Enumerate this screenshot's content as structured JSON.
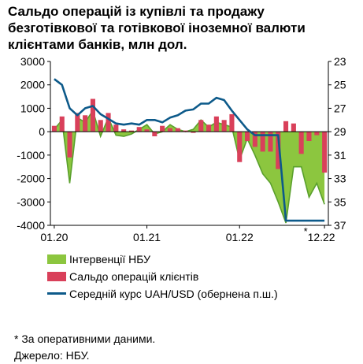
{
  "title_lines": [
    "Сальдо операцій із купівлі та продажу",
    "безготівкової та готівкової іноземної валюти",
    "клієнтами банків, млн дол."
  ],
  "legend": [
    {
      "label": "Інтервенції НБУ",
      "color": "#8cc63f",
      "kind": "area"
    },
    {
      "label": "Сальдо операцій клієнтів",
      "color": "#d9405a",
      "kind": "bar"
    },
    {
      "label": "Середній курс UAH/USD (обернена п.ш.)",
      "color": "#0d5a8a",
      "kind": "line"
    }
  ],
  "footnotes": [
    "* За оперативними даними.",
    "Джерело: НБУ."
  ],
  "chart_data": {
    "type": "bar",
    "x_tick_labels": [
      "01.20",
      "01.21",
      "01.22",
      "12.22"
    ],
    "x_tick_note": "*",
    "y_left": {
      "ticks": [
        3000,
        2000,
        1000,
        0,
        -1000,
        -2000,
        -3000,
        -4000
      ],
      "ylim": [
        -4000,
        3000
      ]
    },
    "y_right": {
      "ticks": [
        23,
        25,
        27,
        29,
        31,
        33,
        35,
        37
      ],
      "ylim": [
        23,
        37
      ],
      "inverted": true
    },
    "months": [
      "01.20",
      "02.20",
      "03.20",
      "04.20",
      "05.20",
      "06.20",
      "07.20",
      "08.20",
      "09.20",
      "10.20",
      "11.20",
      "12.20",
      "01.21",
      "02.21",
      "03.21",
      "04.21",
      "05.21",
      "06.21",
      "07.21",
      "08.21",
      "09.21",
      "10.21",
      "11.21",
      "12.21",
      "01.22",
      "02.22",
      "03.22",
      "04.22",
      "05.22",
      "06.22",
      "07.22",
      "08.22",
      "09.22",
      "10.22",
      "11.22",
      "12.22"
    ],
    "series": [
      {
        "name": "Інтервенції НБУ",
        "type": "area",
        "color": "#8cc63f",
        "values": [
          100,
          500,
          -2200,
          600,
          400,
          900,
          -200,
          600,
          -150,
          -200,
          -100,
          100,
          300,
          -100,
          0,
          300,
          100,
          0,
          100,
          500,
          200,
          400,
          300,
          200,
          -1200,
          -300,
          -1000,
          -1800,
          -2200,
          -3000,
          -3900,
          -1500,
          -1500,
          -2800,
          -2200,
          -3100
        ]
      },
      {
        "name": "Сальдо операцій клієнтів",
        "type": "bar",
        "color": "#d9405a",
        "values": [
          250,
          650,
          -1100,
          800,
          700,
          1400,
          500,
          800,
          300,
          100,
          50,
          200,
          100,
          -200,
          250,
          150,
          150,
          50,
          -50,
          500,
          300,
          650,
          500,
          750,
          -1300,
          -400,
          -650,
          -850,
          -850,
          -1600,
          450,
          350,
          -950,
          -400,
          -150,
          -1750
        ]
      },
      {
        "name": "Середній курс UAH/USD",
        "type": "line",
        "axis": "right",
        "color": "#0d5a8a",
        "values": [
          24.5,
          25.0,
          27.0,
          27.6,
          27.0,
          26.8,
          27.5,
          27.9,
          28.3,
          28.4,
          28.3,
          28.4,
          28.0,
          28.0,
          28.2,
          27.8,
          27.6,
          27.2,
          27.1,
          26.6,
          26.6,
          26.1,
          26.3,
          27.2,
          28.0,
          28.8,
          29.3,
          29.3,
          29.3,
          29.3,
          36.6,
          36.6,
          36.6,
          36.6,
          36.6,
          36.6
        ]
      }
    ]
  }
}
